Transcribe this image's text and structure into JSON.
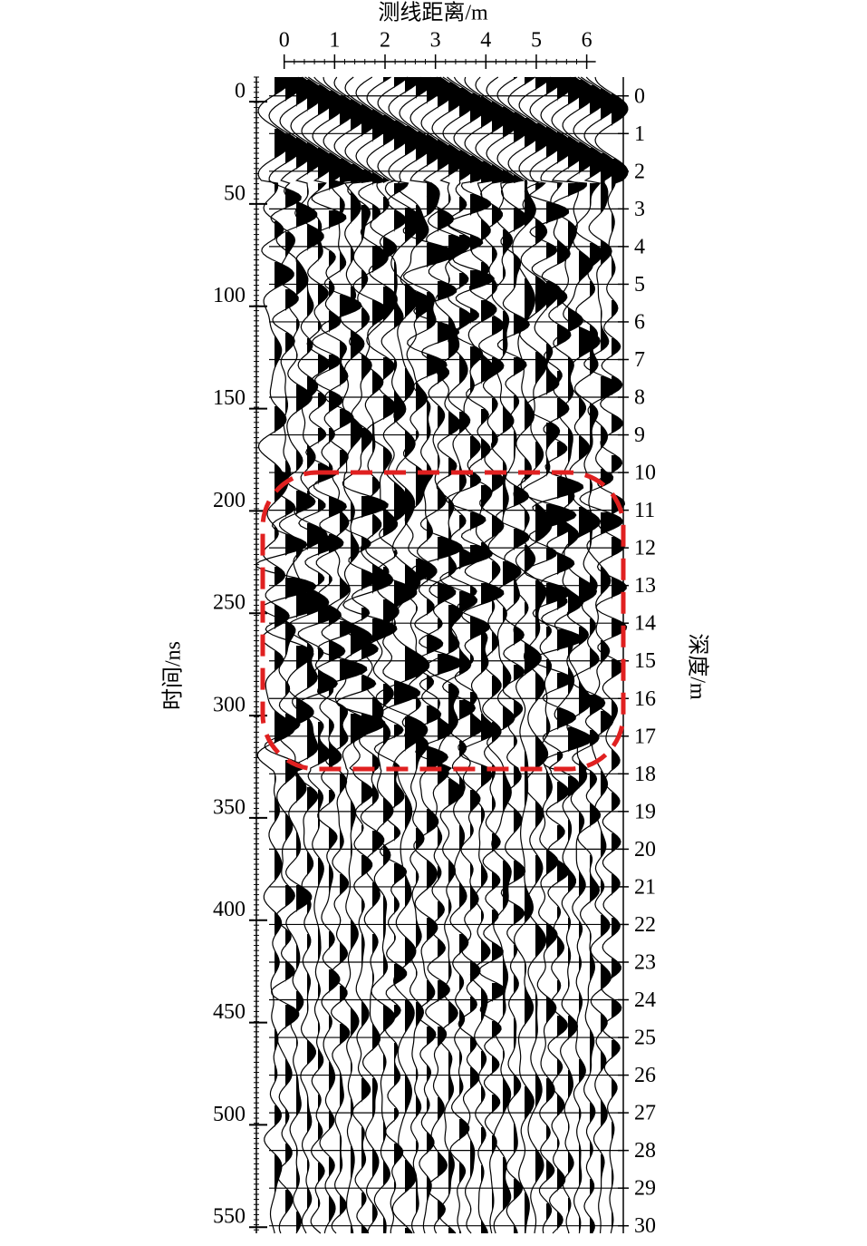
{
  "chart_data": {
    "type": "radargram",
    "x_label": "测线距离/m",
    "y_label": "时间/ns",
    "y2_label": "深度/m",
    "xlim": [
      -0.3,
      6.6
    ],
    "xticks": [
      0,
      1,
      2,
      3,
      4,
      5,
      6
    ],
    "ylim": [
      -12,
      553
    ],
    "yticks": [
      0,
      50,
      100,
      150,
      200,
      250,
      300,
      350,
      400,
      450,
      500,
      550
    ],
    "y2lim": [
      -0.5,
      30.2
    ],
    "y2ticks": [
      0,
      1,
      2,
      3,
      4,
      5,
      6,
      7,
      8,
      9,
      10,
      11,
      12,
      13,
      14,
      15,
      16,
      17,
      18,
      19,
      20,
      21,
      22,
      23,
      24,
      25,
      26,
      27,
      28,
      29,
      30
    ],
    "grid": true,
    "trace_color": "#000000",
    "annotation_color": "#e02020"
  }
}
